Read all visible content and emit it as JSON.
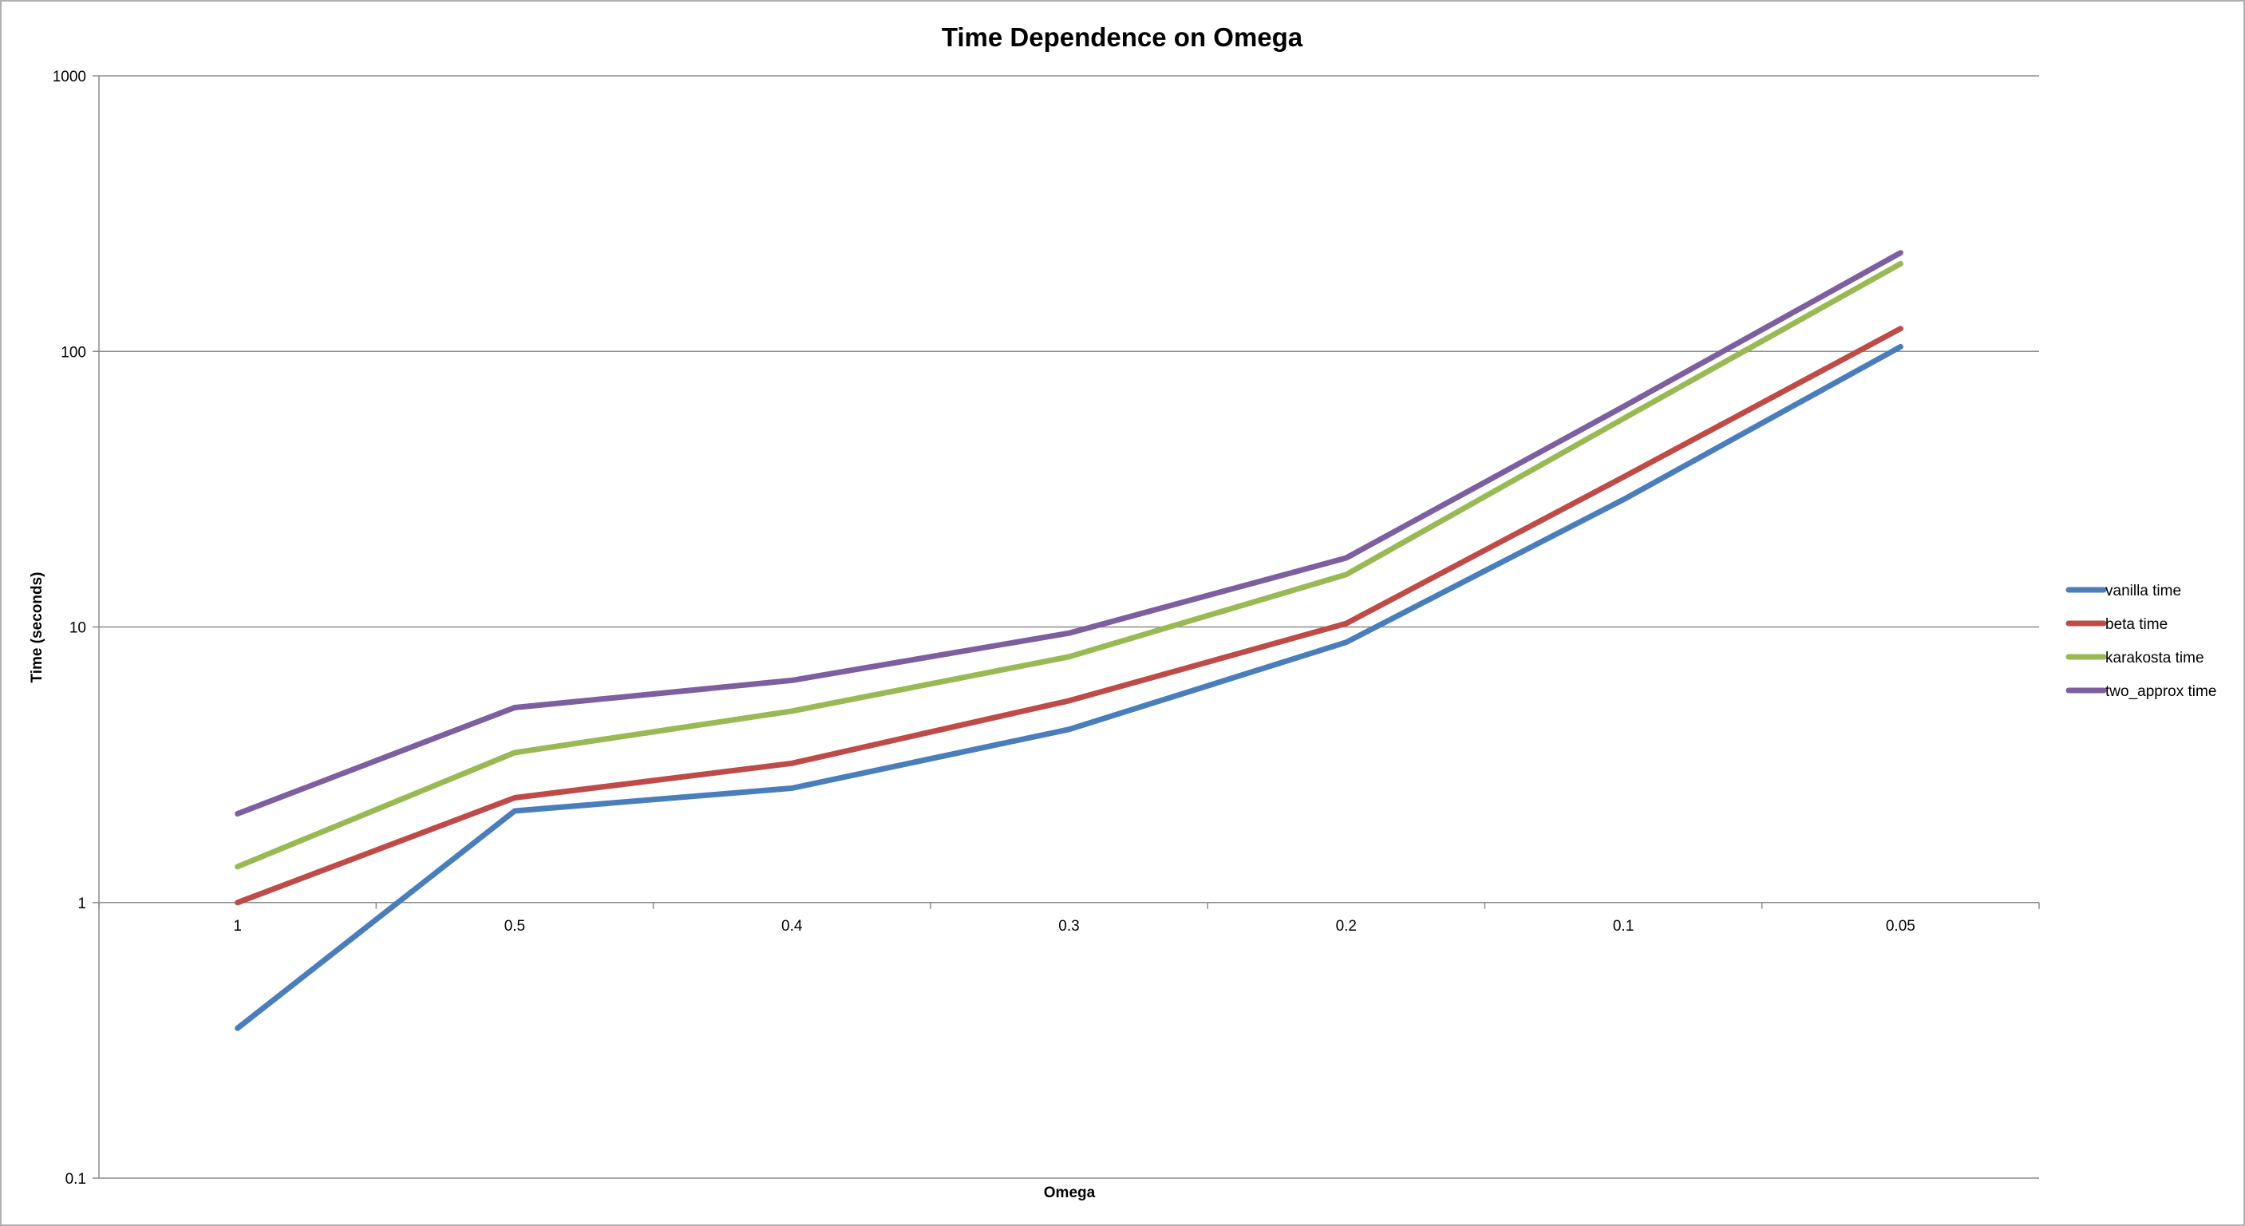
{
  "chart_data": {
    "type": "line",
    "title": "Time Dependence on Omega",
    "xlabel": "Omega",
    "ylabel": "Time (seconds)",
    "y_scale": "log",
    "ylim": [
      0.1,
      1000
    ],
    "y_ticks": [
      "0.1",
      "1",
      "10",
      "100",
      "1000"
    ],
    "categories": [
      "1",
      "0.5",
      "0.4",
      "0.3",
      "0.2",
      "0.1",
      "0.05"
    ],
    "grid": "horizontal",
    "legend_position": "right",
    "series": [
      {
        "name": "vanilla time",
        "color": "#4a7ebb",
        "values": [
          0.35,
          2.15,
          2.6,
          4.25,
          8.8,
          29,
          104
        ]
      },
      {
        "name": "beta time",
        "color": "#be4b48",
        "values": [
          1.0,
          2.4,
          3.2,
          5.4,
          10.3,
          35,
          121
        ]
      },
      {
        "name": "karakosta time",
        "color": "#98b954",
        "values": [
          1.35,
          3.5,
          4.95,
          7.8,
          15.5,
          57,
          208
        ]
      },
      {
        "name": "two_approx time",
        "color": "#7d5fa0",
        "values": [
          2.1,
          5.1,
          6.4,
          9.5,
          17.8,
          63,
          228
        ]
      }
    ]
  }
}
